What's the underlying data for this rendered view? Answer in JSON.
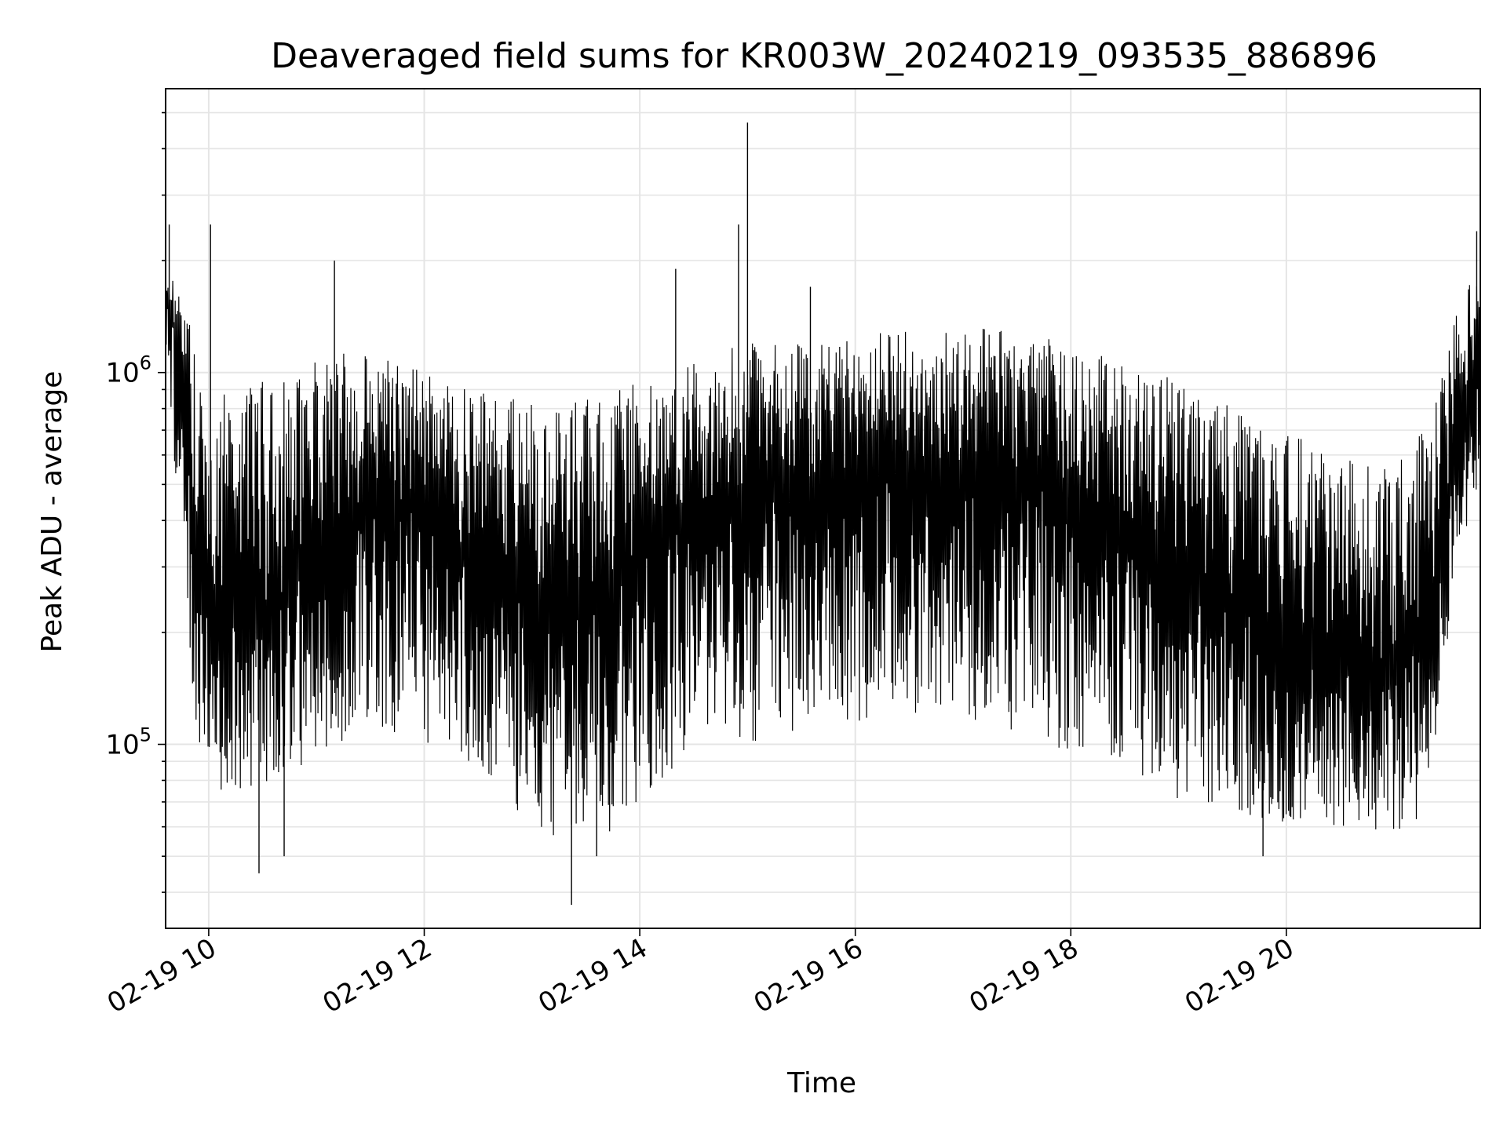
{
  "chart_data": {
    "type": "line",
    "title": "Deaveraged field sums for KR003W_20240219_093535_886896",
    "xlabel": "Time",
    "ylabel": "Peak ADU - average",
    "yscale": "log",
    "xlim": [
      "2024-02-19 09:36",
      "2024-02-19 21:48"
    ],
    "ylim": [
      32000,
      5800000
    ],
    "grid": true,
    "x_ticks": [
      {
        "t": "2024-02-19 10:00",
        "label": "02-19 10"
      },
      {
        "t": "2024-02-19 12:00",
        "label": "02-19 12"
      },
      {
        "t": "2024-02-19 14:00",
        "label": "02-19 14"
      },
      {
        "t": "2024-02-19 16:00",
        "label": "02-19 16"
      },
      {
        "t": "2024-02-19 18:00",
        "label": "02-19 18"
      },
      {
        "t": "2024-02-19 20:00",
        "label": "02-19 20"
      }
    ],
    "y_ticks": [
      {
        "value": 100000,
        "base": "10",
        "exp": "5"
      },
      {
        "value": 1000000,
        "base": "10",
        "exp": "6"
      }
    ],
    "line_color": "#000000",
    "series": [
      {
        "x": [
          "2024-02-19 09:36",
          "2024-02-19 09:42",
          "2024-02-19 09:48",
          "2024-02-19 09:54",
          "2024-02-19 10:00",
          "2024-02-19 10:12",
          "2024-02-19 10:24",
          "2024-02-19 10:36",
          "2024-02-19 10:48",
          "2024-02-19 11:00",
          "2024-02-19 11:12",
          "2024-02-19 11:24",
          "2024-02-19 11:36",
          "2024-02-19 11:48",
          "2024-02-19 12:00",
          "2024-02-19 12:12",
          "2024-02-19 12:24",
          "2024-02-19 12:36",
          "2024-02-19 12:48",
          "2024-02-19 13:00",
          "2024-02-19 13:12",
          "2024-02-19 13:24",
          "2024-02-19 13:36",
          "2024-02-19 13:48",
          "2024-02-19 14:00",
          "2024-02-19 14:12",
          "2024-02-19 14:24",
          "2024-02-19 14:36",
          "2024-02-19 14:48",
          "2024-02-19 15:00",
          "2024-02-19 15:12",
          "2024-02-19 15:24",
          "2024-02-19 15:36",
          "2024-02-19 15:48",
          "2024-02-19 16:00",
          "2024-02-19 16:12",
          "2024-02-19 16:24",
          "2024-02-19 16:36",
          "2024-02-19 16:48",
          "2024-02-19 17:00",
          "2024-02-19 17:12",
          "2024-02-19 17:24",
          "2024-02-19 17:36",
          "2024-02-19 17:48",
          "2024-02-19 18:00",
          "2024-02-19 18:12",
          "2024-02-19 18:24",
          "2024-02-19 18:36",
          "2024-02-19 18:48",
          "2024-02-19 19:00",
          "2024-02-19 19:12",
          "2024-02-19 19:24",
          "2024-02-19 19:36",
          "2024-02-19 19:48",
          "2024-02-19 20:00",
          "2024-02-19 20:12",
          "2024-02-19 20:24",
          "2024-02-19 20:36",
          "2024-02-19 20:48",
          "2024-02-19 21:00",
          "2024-02-19 21:12",
          "2024-02-19 21:24",
          "2024-02-19 21:36",
          "2024-02-19 21:48"
        ],
        "y_center": [
          1600000,
          1300000,
          800000,
          300000,
          250000,
          220000,
          210000,
          230000,
          300000,
          330000,
          380000,
          420000,
          450000,
          440000,
          400000,
          360000,
          330000,
          290000,
          260000,
          240000,
          230000,
          240000,
          250000,
          280000,
          320000,
          360000,
          400000,
          430000,
          460000,
          480000,
          480000,
          470000,
          480000,
          500000,
          520000,
          540000,
          550000,
          560000,
          570000,
          570000,
          560000,
          540000,
          520000,
          490000,
          460000,
          420000,
          380000,
          350000,
          320000,
          290000,
          270000,
          250000,
          230000,
          210000,
          190000,
          180000,
          170000,
          160000,
          150000,
          155000,
          180000,
          260000,
          700000,
          1100000
        ],
        "y_min": [
          900000,
          500000,
          200000,
          90000,
          80000,
          70000,
          75000,
          80000,
          85000,
          90000,
          100000,
          105000,
          110000,
          105000,
          100000,
          95000,
          90000,
          80000,
          70000,
          60000,
          55000,
          50000,
          55000,
          60000,
          70000,
          80000,
          90000,
          95000,
          100000,
          100000,
          100000,
          105000,
          108000,
          110000,
          112000,
          115000,
          118000,
          120000,
          120000,
          118000,
          115000,
          110000,
          105000,
          100000,
          95000,
          90000,
          85000,
          80000,
          75000,
          70000,
          68000,
          66000,
          64000,
          62000,
          60000,
          60000,
          60000,
          58000,
          57000,
          58000,
          60000,
          110000,
          300000,
          500000
        ],
        "y_max": [
          1900000,
          1700000,
          1500000,
          1050000,
          950000,
          900000,
          950000,
          1000000,
          1050000,
          1100000,
          1150000,
          1150000,
          1100000,
          1050000,
          1000000,
          950000,
          900000,
          880000,
          860000,
          850000,
          850000,
          860000,
          880000,
          900000,
          950000,
          1000000,
          1050000,
          1100000,
          1150000,
          1200000,
          1200000,
          1220000,
          1240000,
          1250000,
          1270000,
          1300000,
          1320000,
          1340000,
          1350000,
          1340000,
          1320000,
          1300000,
          1270000,
          1240000,
          1200000,
          1150000,
          1100000,
          1050000,
          1000000,
          950000,
          900000,
          850000,
          800000,
          750000,
          700000,
          650000,
          600000,
          580000,
          560000,
          580000,
          650000,
          900000,
          1600000,
          1900000
        ]
      }
    ],
    "spikes": [
      {
        "t": "2024-02-19 09:38",
        "value": 2500000
      },
      {
        "t": "2024-02-19 10:01",
        "value": 2500000
      },
      {
        "t": "2024-02-19 11:10",
        "value": 2000000
      },
      {
        "t": "2024-02-19 14:20",
        "value": 1900000
      },
      {
        "t": "2024-02-19 14:55",
        "value": 2500000
      },
      {
        "t": "2024-02-19 15:00",
        "value": 4700000
      },
      {
        "t": "2024-02-19 15:35",
        "value": 1700000
      },
      {
        "t": "2024-02-19 21:46",
        "value": 2400000
      },
      {
        "t": "2024-02-19 10:28",
        "value": 45000
      },
      {
        "t": "2024-02-19 10:42",
        "value": 50000
      },
      {
        "t": "2024-02-19 13:22",
        "value": 37000
      },
      {
        "t": "2024-02-19 13:36",
        "value": 50000
      },
      {
        "t": "2024-02-19 19:47",
        "value": 50000
      }
    ]
  }
}
